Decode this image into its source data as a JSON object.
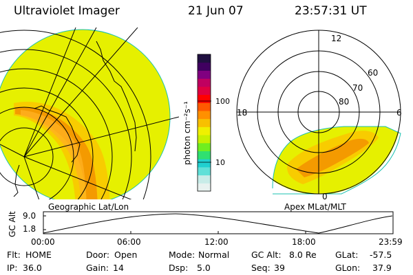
{
  "header": {
    "instrument": "Ultraviolet Imager",
    "date": "21 Jun 07",
    "time": "23:57:31 UT"
  },
  "left_panel": {
    "label": "Geographic Lat/Lon"
  },
  "right_panel": {
    "label": "Apex MLat/MLT",
    "mlt_labels": [
      "12",
      "18",
      "6",
      "0"
    ],
    "mlat_labels": [
      "60",
      "70",
      "80"
    ]
  },
  "colorbar": {
    "unit_label": "photon cm⁻²s⁻¹",
    "tick_labels": [
      "100",
      "10"
    ],
    "colors": [
      "#e8f2f0",
      "#c8ece8",
      "#60e0d8",
      "#20d0d0",
      "#30e070",
      "#70ee20",
      "#c8f000",
      "#f0f000",
      "#f8c000",
      "#ff9000",
      "#ff5a00",
      "#ff0000",
      "#e00040",
      "#c00060",
      "#800080",
      "#400060",
      "#201040"
    ]
  },
  "altitude_plot": {
    "ylabel": "GC Alt",
    "y_ticks": [
      "9.0",
      "1.8"
    ],
    "x_ticks": [
      "00:00",
      "06:00",
      "12:00",
      "18:00",
      "23:59"
    ]
  },
  "footer": {
    "flt_label": "Flt:",
    "flt_value": "HOME",
    "ip_label": "IP:",
    "ip_value": "36.0",
    "door_label": "Door:",
    "door_value": "Open",
    "gain_label": "Gain:",
    "gain_value": "14",
    "mode_label": "Mode:",
    "mode_value": "Normal",
    "dsp_label": "Dsp:",
    "dsp_value": "5.0",
    "gcalt_label": "GC Alt:",
    "gcalt_value": "8.0 Re",
    "seq_label": "Seq:",
    "seq_value": "39",
    "glat_label": "GLat:",
    "glat_value": "-57.5",
    "glon_label": "GLon:",
    "glon_value": "37.9"
  }
}
